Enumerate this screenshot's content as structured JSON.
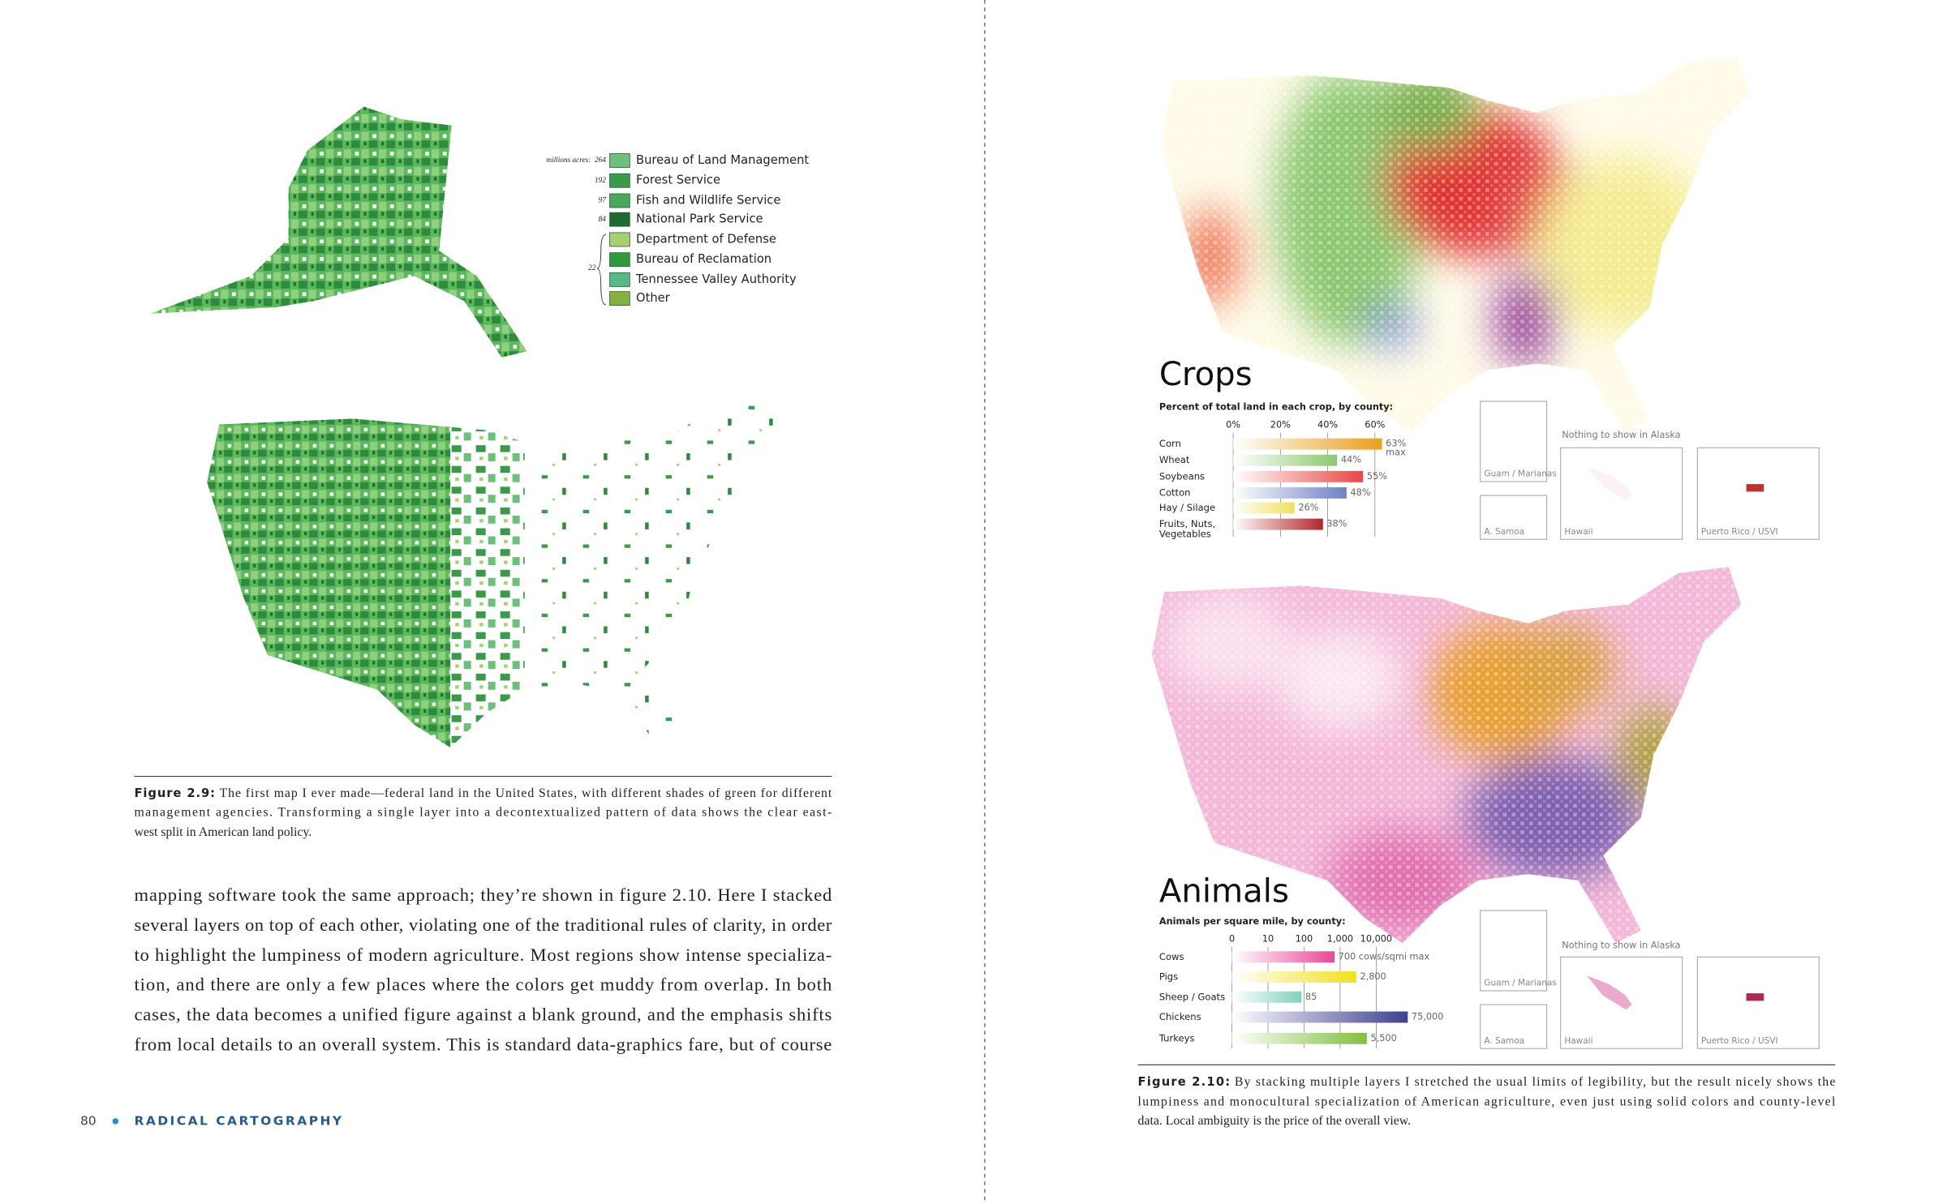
{
  "left_page": {
    "federal_legend": {
      "unit_label": "millions acres:",
      "entries": [
        {
          "name": "Bureau of Land Management",
          "color": "#6cc07a",
          "acres": 264
        },
        {
          "name": "Forest Service",
          "color": "#3a9a4a",
          "acres": 192
        },
        {
          "name": "Fish and Wildlife Service",
          "color": "#4aa85a",
          "acres": 97
        },
        {
          "name": "National Park Service",
          "color": "#1e6a30",
          "acres": 84
        },
        {
          "name": "Department of Defense",
          "color": "#a8d070"
        },
        {
          "name": "Bureau of Reclamation",
          "color": "#2f9a3c"
        },
        {
          "name": "Tennessee Valley Authority",
          "color": "#58b888"
        },
        {
          "name": "Other",
          "color": "#86b040"
        }
      ],
      "group_acres": 22
    },
    "caption": {
      "label": "Figure 2.9:",
      "lines": [
        "The first map I ever made—federal land in the United States, with different shades of green for different",
        "management agencies. Transforming a single layer into a decontextualized pattern of data shows the clear east-",
        "west split in American land policy."
      ]
    },
    "body_lines": [
      "mapping software took the same approach; they’re shown in figure 2.10. Here I stacked",
      "several layers on top of each other, violating one of the traditional rules of clarity, in order",
      "to highlight the lumpiness of modern agriculture. Most regions show intense specializa-",
      "tion, and there are only a few places where the colors get muddy from overlap. In both",
      "cases, the data becomes a unified figure against a blank ground, and the emphasis shifts",
      "from local details to an overall system. This is standard data-graphics fare, but of course"
    ],
    "footer": {
      "page_number": "80",
      "running_title": "RADICAL CARTOGRAPHY"
    }
  },
  "right_page": {
    "crops": {
      "title": "Crops",
      "subtitle": "Percent of total land in each crop, by county:",
      "ticks": [
        {
          "value": 0,
          "label": "0%"
        },
        {
          "value": 20,
          "label": "20%"
        },
        {
          "value": 40,
          "label": "40%"
        },
        {
          "value": 60,
          "label": "60%"
        }
      ],
      "rows": [
        {
          "name": "Corn",
          "value": 63,
          "label": "63%",
          "note": "max",
          "color": "#e8a020"
        },
        {
          "name": "Wheat",
          "value": 44,
          "label": "44%",
          "color": "#8cc870"
        },
        {
          "name": "Soybeans",
          "value": 55,
          "label": "55%",
          "color": "#e84848"
        },
        {
          "name": "Cotton",
          "value": 48,
          "label": "48%",
          "color": "#7080c8"
        },
        {
          "name": "Hay / Silage",
          "value": 26,
          "label": "26%",
          "color": "#f0e060"
        },
        {
          "name": [
            "Fruits, Nuts,",
            "Vegetables"
          ],
          "value": 38,
          "label": "38%",
          "color": "#b02828"
        }
      ],
      "alaska_note": "Nothing to show in Alaska",
      "insets": [
        "Guam / Marianas",
        "A. Samoa",
        "Hawaii",
        "Puerto Rico / USVI"
      ]
    },
    "animals": {
      "title": "Animals",
      "subtitle": "Animals per square mile, by county:",
      "log_scale": true,
      "ticks": [
        "0",
        "10",
        "100",
        "1,000",
        "10,000"
      ],
      "rows": [
        {
          "name": "Cows",
          "value": 700,
          "label": "700 cows/sqmi max",
          "color": "#e84898"
        },
        {
          "name": "Pigs",
          "value": 2800,
          "label": "2,800",
          "color": "#f0e020"
        },
        {
          "name": "Sheep / Goats",
          "value": 85,
          "color": "#80d0c0"
        },
        {
          "name": "Chickens",
          "value": 75000,
          "label": "75,000",
          "color": "#404090"
        },
        {
          "name": "Turkeys",
          "value": 5500,
          "label": "5,500",
          "color": "#80c040"
        }
      ],
      "alaska_note": "Nothing to show in Alaska",
      "insets": [
        "Guam / Marianas",
        "A. Samoa",
        "Hawaii",
        "Puerto Rico / USVI"
      ]
    },
    "caption": {
      "label": "Figure 2.10:",
      "lines": [
        "By stacking multiple layers I stretched the usual limits of legibility, but the result nicely shows the",
        "lumpiness and monocultural specialization of American agriculture, even just using solid colors and county-level",
        "data. Local ambiguity is the price of the overall view."
      ]
    }
  }
}
